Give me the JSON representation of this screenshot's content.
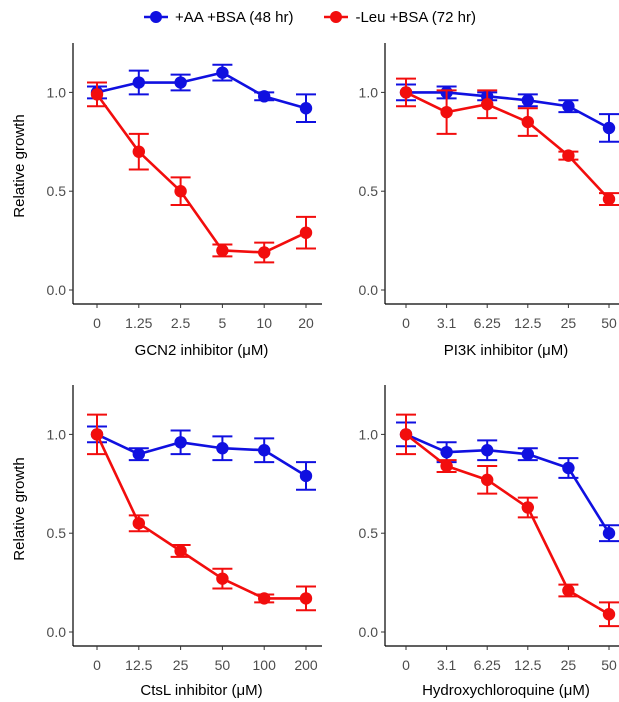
{
  "colors": {
    "series_aa": "#1010e0",
    "series_leu": "#f20d0d"
  },
  "legend": [
    {
      "label": "+AA +BSA (48 hr)",
      "color": "#1010e0"
    },
    {
      "label": "-Leu +BSA (72 hr)",
      "color": "#f20d0d"
    }
  ],
  "chart_data": [
    {
      "type": "line",
      "xlabel": "GCN2 inhibitor (μM)",
      "ylabel": "Relative growth",
      "categories": [
        "0",
        "1.25",
        "2.5",
        "5",
        "10",
        "20"
      ],
      "ylim": [
        0,
        1.25
      ],
      "yticks": [
        "0.0",
        "0.5",
        "1.0"
      ],
      "series": [
        {
          "name": "+AA +BSA (48 hr)",
          "values": [
            1.0,
            1.05,
            1.05,
            1.1,
            0.98,
            0.92
          ],
          "errors": [
            0.03,
            0.06,
            0.04,
            0.04,
            0.02,
            0.07
          ]
        },
        {
          "name": "-Leu +BSA (72 hr)",
          "values": [
            0.99,
            0.7,
            0.5,
            0.2,
            0.19,
            0.29
          ],
          "errors": [
            0.06,
            0.09,
            0.07,
            0.03,
            0.05,
            0.08
          ]
        }
      ]
    },
    {
      "type": "line",
      "xlabel": "PI3K inhibitor (μM)",
      "ylabel": "",
      "categories": [
        "0",
        "3.1",
        "6.25",
        "12.5",
        "25",
        "50"
      ],
      "ylim": [
        0,
        1.25
      ],
      "yticks": [
        "0.0",
        "0.5",
        "1.0"
      ],
      "series": [
        {
          "name": "+AA +BSA (48 hr)",
          "values": [
            1.0,
            1.0,
            0.98,
            0.96,
            0.93,
            0.82
          ],
          "errors": [
            0.04,
            0.03,
            0.02,
            0.03,
            0.03,
            0.07
          ]
        },
        {
          "name": "-Leu +BSA (72 hr)",
          "values": [
            1.0,
            0.9,
            0.94,
            0.85,
            0.68,
            0.46
          ],
          "errors": [
            0.07,
            0.11,
            0.07,
            0.07,
            0.02,
            0.03
          ]
        }
      ]
    },
    {
      "type": "line",
      "xlabel": "CtsL inhibitor (μM)",
      "ylabel": "Relative growth",
      "categories": [
        "0",
        "12.5",
        "25",
        "50",
        "100",
        "200"
      ],
      "ylim": [
        0,
        1.25
      ],
      "yticks": [
        "0.0",
        "0.5",
        "1.0"
      ],
      "series": [
        {
          "name": "+AA +BSA (48 hr)",
          "values": [
            1.0,
            0.9,
            0.96,
            0.93,
            0.92,
            0.79
          ],
          "errors": [
            0.04,
            0.03,
            0.06,
            0.06,
            0.06,
            0.07
          ]
        },
        {
          "name": "-Leu +BSA (72 hr)",
          "values": [
            1.0,
            0.55,
            0.41,
            0.27,
            0.17,
            0.17
          ],
          "errors": [
            0.1,
            0.04,
            0.03,
            0.05,
            0.02,
            0.06
          ]
        }
      ]
    },
    {
      "type": "line",
      "xlabel": "Hydroxychloroquine (μM)",
      "ylabel": "",
      "categories": [
        "0",
        "3.1",
        "6.25",
        "12.5",
        "25",
        "50"
      ],
      "ylim": [
        0,
        1.25
      ],
      "yticks": [
        "0.0",
        "0.5",
        "1.0"
      ],
      "series": [
        {
          "name": "+AA +BSA (48 hr)",
          "values": [
            1.0,
            0.91,
            0.92,
            0.9,
            0.83,
            0.5
          ],
          "errors": [
            0.06,
            0.05,
            0.05,
            0.03,
            0.05,
            0.04
          ]
        },
        {
          "name": "-Leu +BSA (72 hr)",
          "values": [
            1.0,
            0.84,
            0.77,
            0.63,
            0.21,
            0.09
          ],
          "errors": [
            0.1,
            0.03,
            0.07,
            0.05,
            0.03,
            0.06
          ]
        }
      ]
    }
  ]
}
